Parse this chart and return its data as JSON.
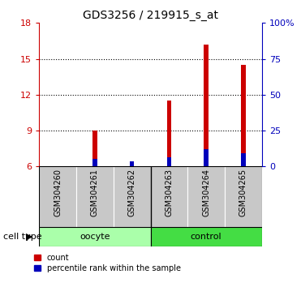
{
  "title": "GDS3256 / 219915_s_at",
  "samples": [
    "GSM304260",
    "GSM304261",
    "GSM304262",
    "GSM304263",
    "GSM304264",
    "GSM304265"
  ],
  "ylim": [
    6,
    18
  ],
  "yticks": [
    6,
    9,
    12,
    15,
    18
  ],
  "right_yticks": [
    0,
    25,
    50,
    75,
    100
  ],
  "right_ytick_labels": [
    "0",
    "25",
    "50",
    "75",
    "100%"
  ],
  "left_axis_color": "#CC0000",
  "right_axis_color": "#0000BB",
  "bar_color": "#CC0000",
  "percentile_color": "#0000BB",
  "count_values": [
    6.0,
    9.0,
    6.05,
    11.5,
    16.2,
    14.5
  ],
  "percentile_values": [
    6.0,
    6.65,
    6.45,
    6.75,
    7.45,
    7.1
  ],
  "bar_width": 0.12,
  "bg_color": "#FFFFFF",
  "sample_label_bg": "#C8C8C8",
  "oocyte_color": "#AAFFAA",
  "control_color": "#44DD44",
  "divider_color": "#000000"
}
